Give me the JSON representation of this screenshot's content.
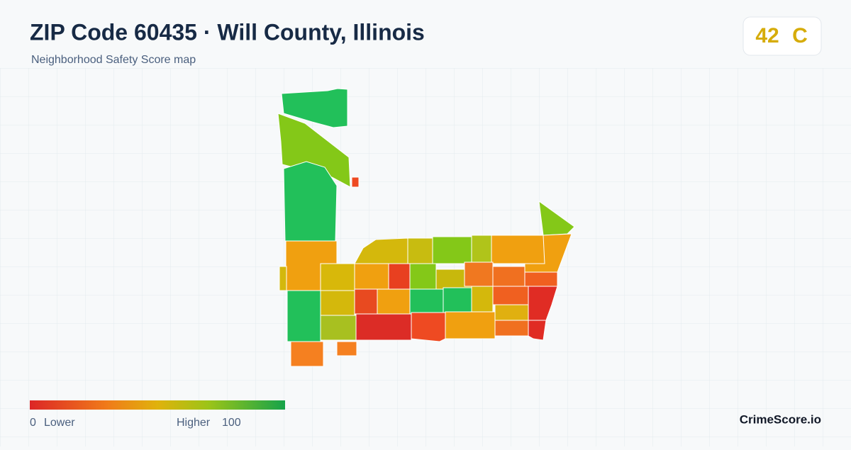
{
  "header": {
    "title": "ZIP Code 60435 · Will County, Illinois",
    "subtitle": "Neighborhood Safety Score map"
  },
  "score": {
    "value": "42",
    "grade": "C"
  },
  "legend": {
    "min": "0",
    "min_label": "Lower",
    "max_label": "Higher",
    "max": "100"
  },
  "brand": "CrimeScore.io"
}
